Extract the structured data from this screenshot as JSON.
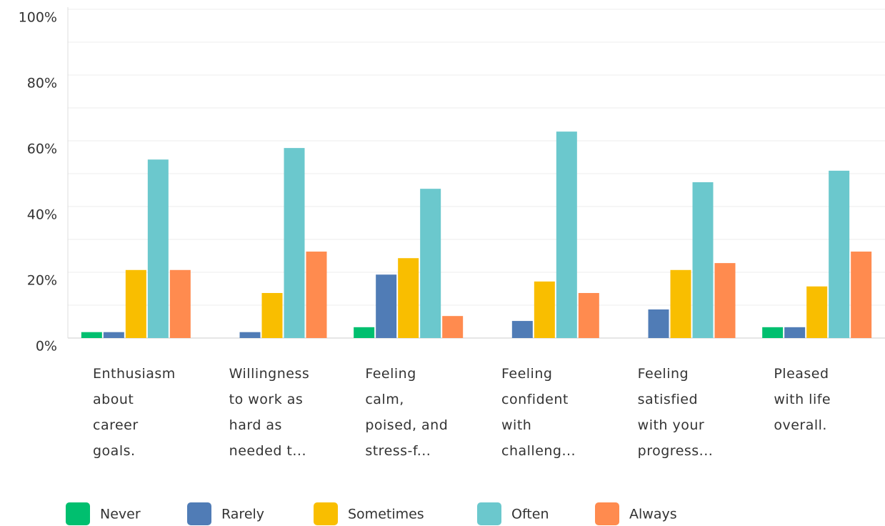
{
  "chart_data": {
    "type": "bar",
    "categories": [
      "Enthusiasm\nabout\ncareer\ngoals.",
      "Willingness\nto work as\nhard as\nneeded t...",
      "Feeling\ncalm,\npoised, and\nstress-f...",
      "Feeling\nconfident\nwith\nchalleng...",
      "Feeling\nsatisfied\nwith your\nprogress...",
      "Pleased\nwith life\noverall."
    ],
    "series": [
      {
        "name": "Never",
        "color": "#00bf6f",
        "values": [
          1.8,
          0,
          3.3,
          0,
          0,
          3.3
        ]
      },
      {
        "name": "Rarely",
        "color": "#507cb6",
        "values": [
          1.8,
          1.8,
          19.3,
          5.2,
          8.7,
          3.3
        ]
      },
      {
        "name": "Sometimes",
        "color": "#f9be00",
        "values": [
          20.7,
          13.7,
          24.3,
          17.2,
          20.7,
          15.7
        ]
      },
      {
        "name": "Often",
        "color": "#6bc8cd",
        "values": [
          54.3,
          57.8,
          45.4,
          62.8,
          47.4,
          50.9
        ]
      },
      {
        "name": "Always",
        "color": "#ff8b4f",
        "values": [
          20.7,
          26.3,
          6.7,
          13.7,
          22.8,
          26.3
        ]
      }
    ],
    "ylim": [
      0,
      100
    ],
    "yticks": [
      {
        "value": 0,
        "label": "0%"
      },
      {
        "value": 20,
        "label": "20%"
      },
      {
        "value": 40,
        "label": "40%"
      },
      {
        "value": 60,
        "label": "60%"
      },
      {
        "value": 80,
        "label": "80%"
      },
      {
        "value": 100,
        "label": "100%"
      }
    ],
    "minor_yticks": [
      10,
      30,
      50,
      70,
      90
    ],
    "grid": true,
    "legend": "bottom"
  }
}
